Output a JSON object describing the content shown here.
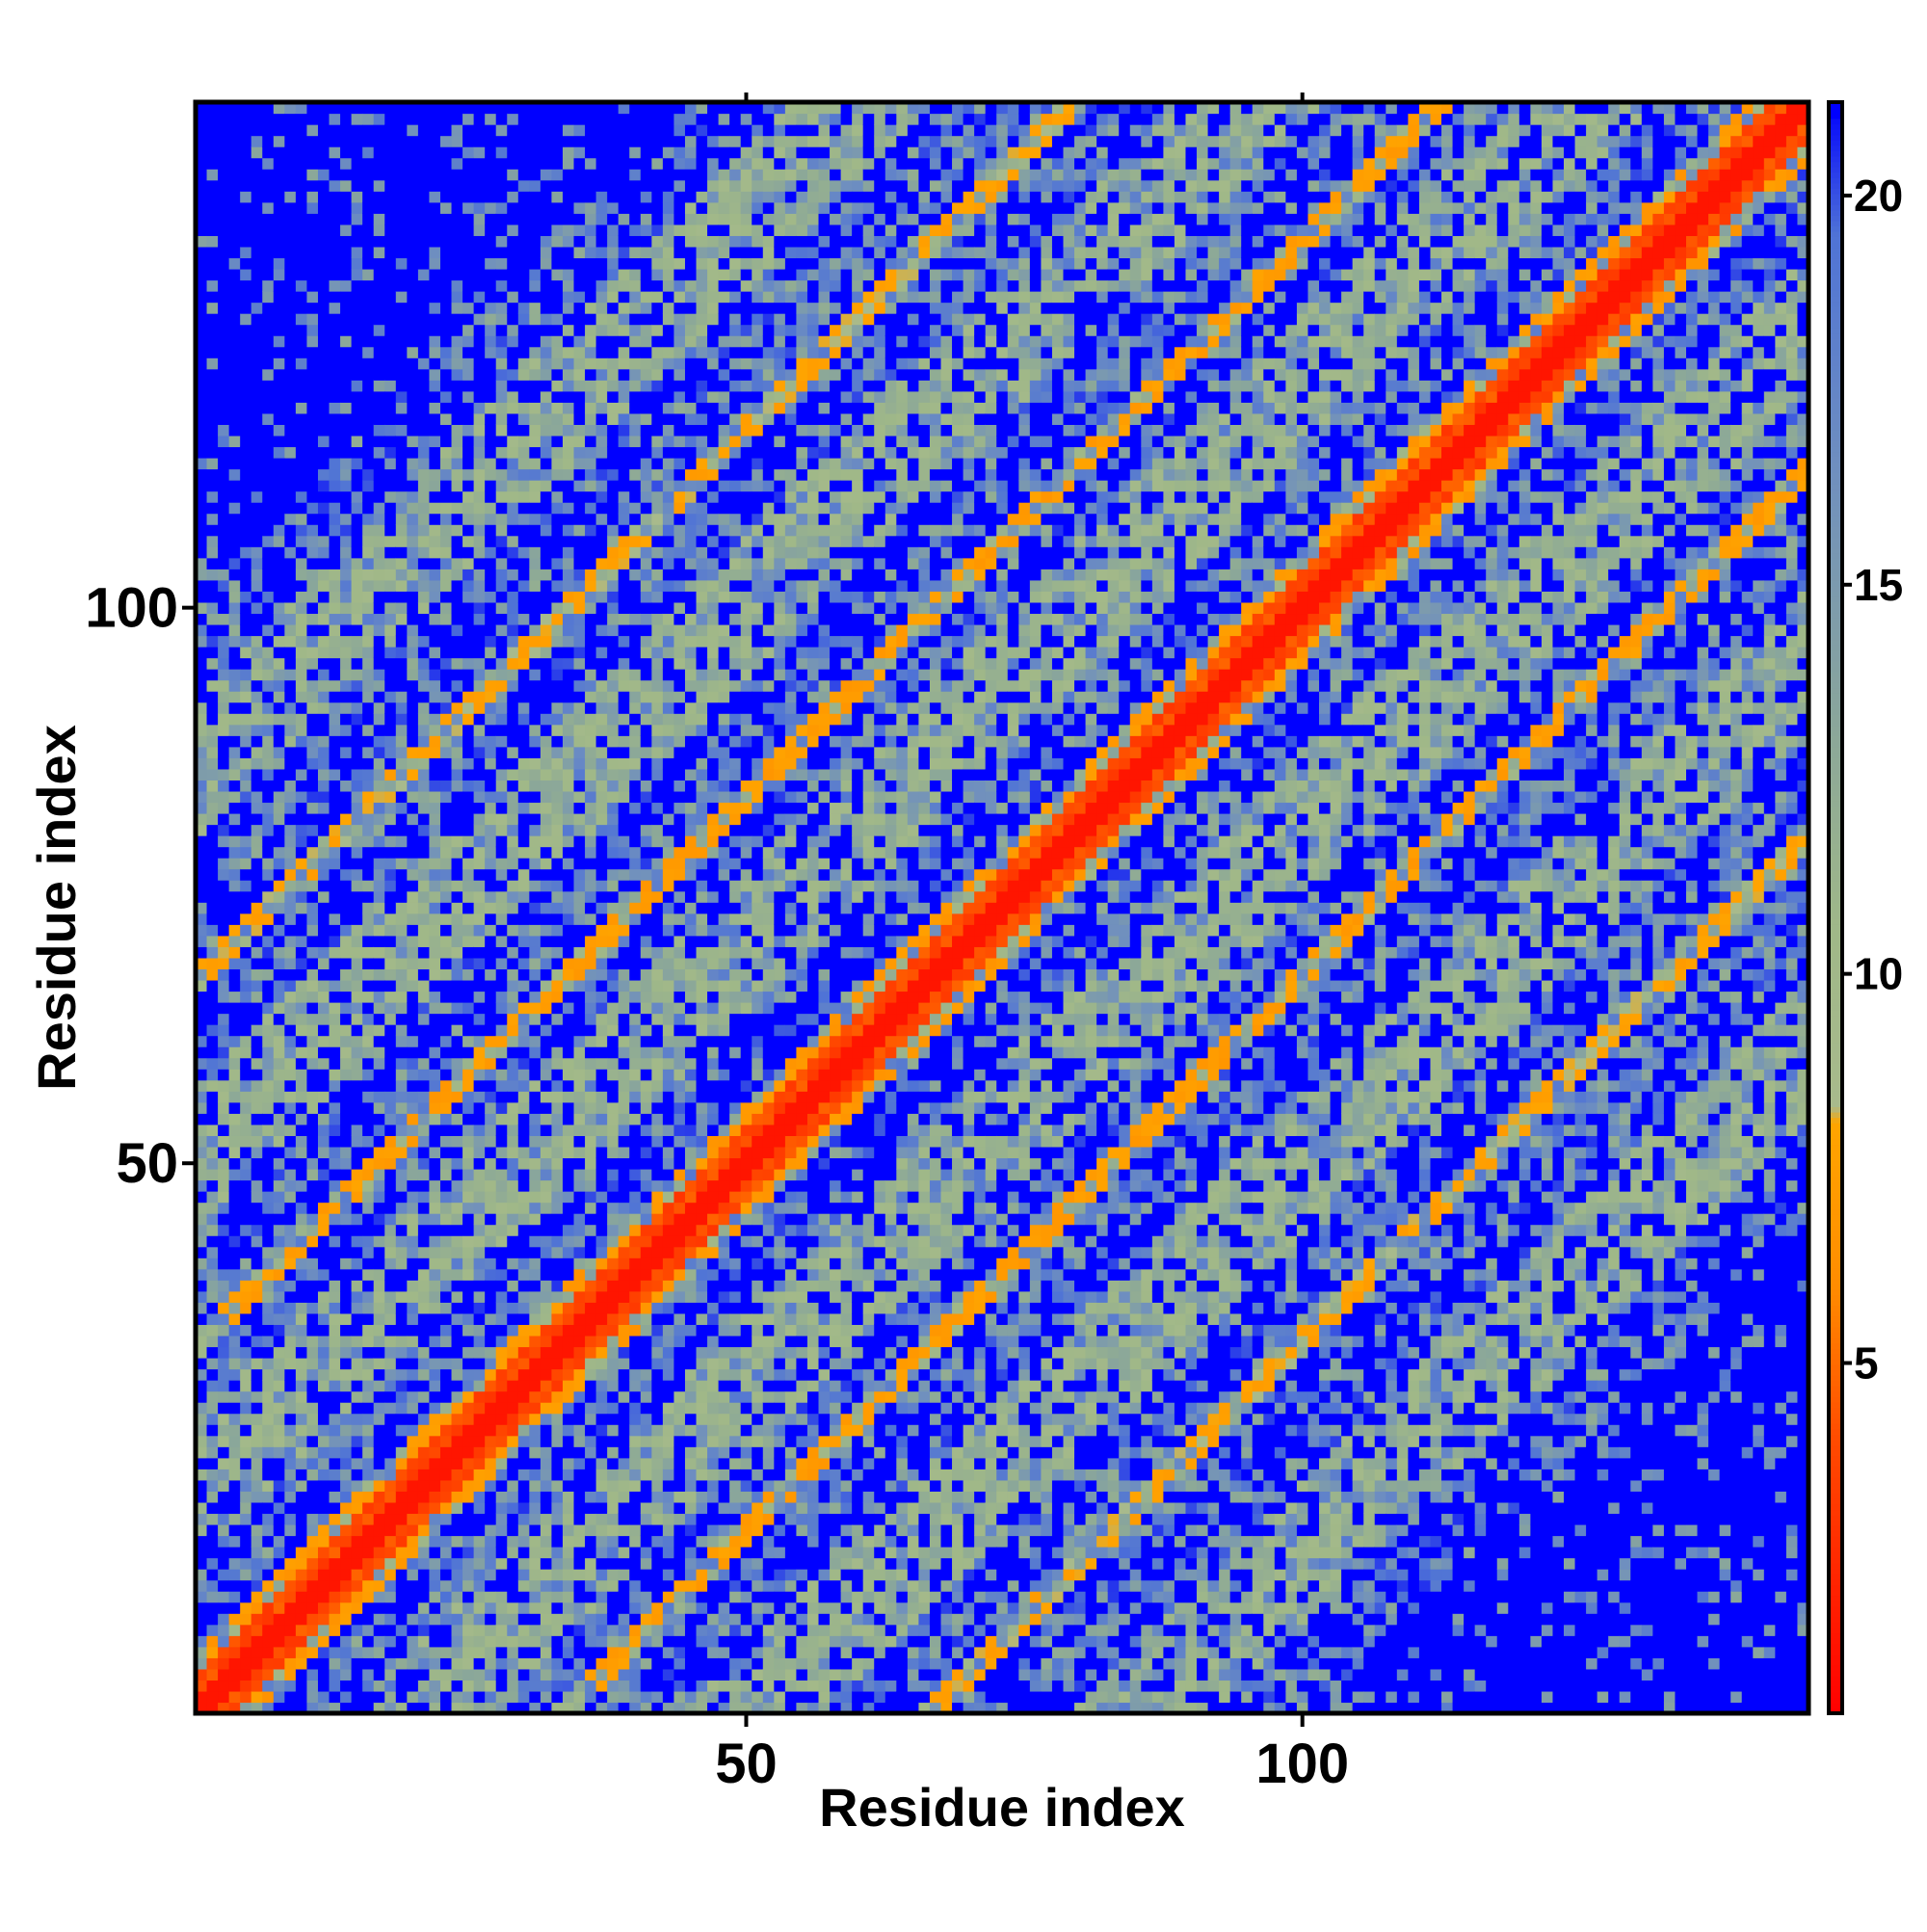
{
  "chart_data": {
    "type": "heatmap",
    "title": "",
    "xlabel": "Residue index",
    "ylabel": "Residue index",
    "n_residues": 145,
    "xlim": [
      1,
      145
    ],
    "ylim": [
      1,
      145
    ],
    "x_ticks": [
      50,
      100
    ],
    "y_ticks": [
      50,
      100
    ],
    "colorbar": {
      "ticks": [
        5,
        10,
        15,
        20
      ],
      "range": [
        0.5,
        21.2
      ],
      "stops": [
        {
          "value": 0.5,
          "color": "#ff0000"
        },
        {
          "value": 4.0,
          "color": "#ff4a00"
        },
        {
          "value": 6.0,
          "color": "#ff8c00"
        },
        {
          "value": 8.1,
          "color": "#ffa500"
        },
        {
          "value": 8.3,
          "color": "#a8ba8c"
        },
        {
          "value": 10.5,
          "color": "#a0b888"
        },
        {
          "value": 13.0,
          "color": "#8ca898"
        },
        {
          "value": 16.5,
          "color": "#6f8fbf"
        },
        {
          "value": 19.5,
          "color": "#4f73d6"
        },
        {
          "value": 21.2,
          "color": "#0000ff"
        }
      ]
    },
    "saturate_above": 21,
    "color_saturated": "#0000ff",
    "grid": false,
    "legend": "right colorbar",
    "structure": {
      "main_diagonal": true,
      "helix_offsets": [
        {
          "offset": 4,
          "distance": 6.5
        },
        {
          "offset": 33,
          "distance": 6.8
        },
        {
          "offset": 66,
          "distance": 7.2
        }
      ],
      "band_centers": [
        20,
        50,
        85
      ]
    }
  }
}
